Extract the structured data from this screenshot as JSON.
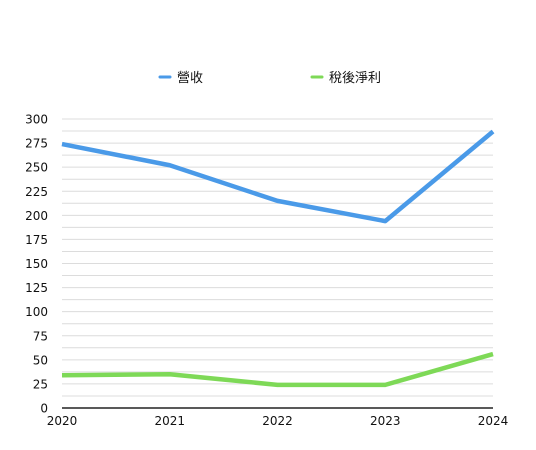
{
  "chart_data": {
    "type": "line",
    "title": "",
    "xlabel": "",
    "ylabel": "",
    "x": [
      "2020",
      "2021",
      "2022",
      "2023",
      "2024"
    ],
    "ylim": [
      0,
      300
    ],
    "yticks": [
      "0",
      "25",
      "50",
      "75",
      "100",
      "125",
      "150",
      "175",
      "200",
      "225",
      "250",
      "275",
      "300"
    ],
    "grid": true,
    "legend_position": "top",
    "series": [
      {
        "name": "營收",
        "color": "#4a9ae8",
        "values": [
          274,
          252,
          215,
          194,
          287
        ]
      },
      {
        "name": "稅後淨利",
        "color": "#7ed957",
        "values": [
          34,
          35,
          24,
          24,
          56
        ]
      }
    ]
  }
}
